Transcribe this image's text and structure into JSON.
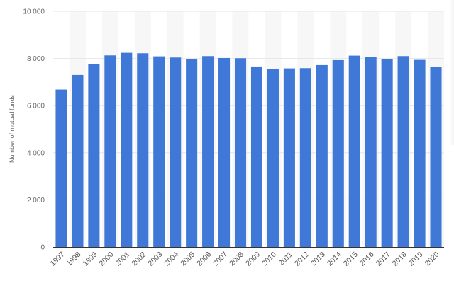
{
  "colors": {
    "bar": "#3f78d7",
    "band": "#f7f7f7",
    "grid": "#e6e6e6",
    "axis": "#333333"
  },
  "chart_data": {
    "type": "bar",
    "title": "",
    "xlabel": "",
    "ylabel": "Number of mutual funds",
    "ylim": [
      0,
      10000
    ],
    "yticks": [
      0,
      2000,
      4000,
      6000,
      8000,
      10000
    ],
    "ytick_labels": [
      "0",
      "2 000",
      "4 000",
      "6 000",
      "8 000",
      "10 000"
    ],
    "grid": true,
    "legend": "none",
    "categories": [
      "1997",
      "1998",
      "1999",
      "2000",
      "2001",
      "2002",
      "2003",
      "2004",
      "2005",
      "2006",
      "2007",
      "2008",
      "2009",
      "2010",
      "2011",
      "2012",
      "2013",
      "2014",
      "2015",
      "2016",
      "2017",
      "2018",
      "2019",
      "2020"
    ],
    "values": [
      6680,
      7300,
      7750,
      8130,
      8240,
      8220,
      8090,
      8040,
      7960,
      8100,
      8020,
      8010,
      7660,
      7540,
      7580,
      7590,
      7720,
      7930,
      8120,
      8070,
      7960,
      8100,
      7940,
      7640
    ]
  }
}
